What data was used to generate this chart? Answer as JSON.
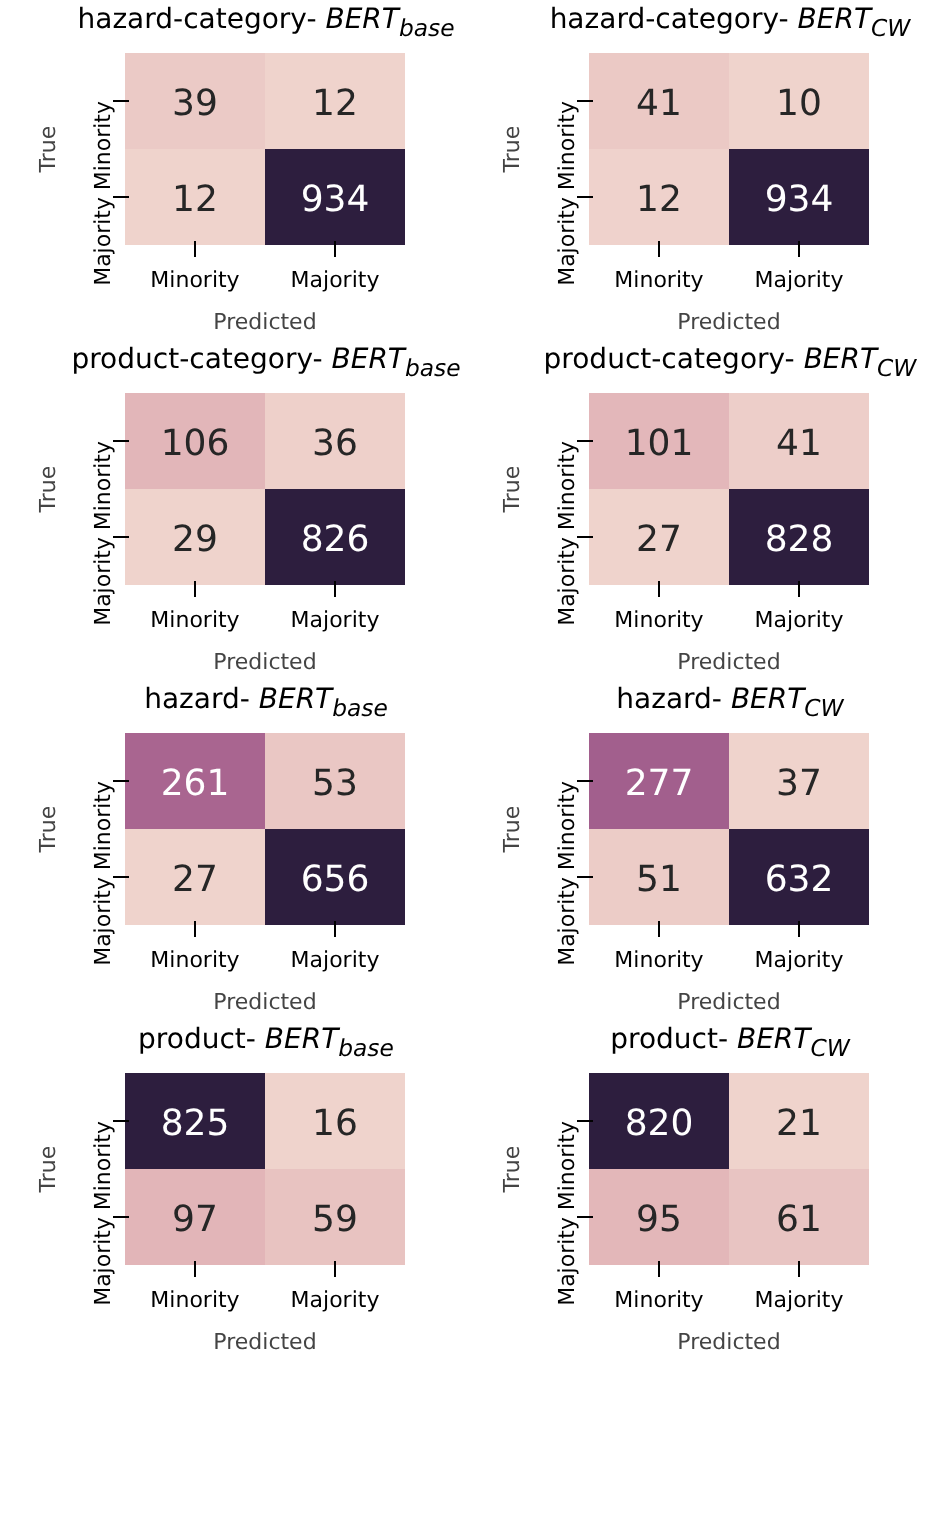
{
  "chart_data": [
    {
      "type": "heatmap",
      "title": "hazard-category- BERT$_{base}$",
      "xlabel": "Predicted",
      "ylabel": "True",
      "categories": [
        "Minority",
        "Majority"
      ],
      "y_categories": [
        "Minority",
        "Majority"
      ],
      "cells": [
        [
          39,
          12
        ],
        [
          12,
          934
        ]
      ],
      "data_labels": true
    },
    {
      "type": "heatmap",
      "title": "hazard-category- BERT$_{CW}$",
      "xlabel": "Predicted",
      "ylabel": "True",
      "categories": [
        "Minority",
        "Majority"
      ],
      "y_categories": [
        "Minority",
        "Majority"
      ],
      "cells": [
        [
          41,
          10
        ],
        [
          12,
          934
        ]
      ],
      "data_labels": true
    },
    {
      "type": "heatmap",
      "title": "product-category- BERT$_{base}$",
      "xlabel": "Predicted",
      "ylabel": "True",
      "categories": [
        "Minority",
        "Majority"
      ],
      "y_categories": [
        "Minority",
        "Majority"
      ],
      "cells": [
        [
          106,
          36
        ],
        [
          29,
          826
        ]
      ],
      "data_labels": true
    },
    {
      "type": "heatmap",
      "title": "product-category- BERT$_{CW}$",
      "xlabel": "Predicted",
      "ylabel": "True",
      "categories": [
        "Minority",
        "Majority"
      ],
      "y_categories": [
        "Minority",
        "Majority"
      ],
      "cells": [
        [
          101,
          41
        ],
        [
          27,
          828
        ]
      ],
      "data_labels": true
    },
    {
      "type": "heatmap",
      "title": "hazard- BERT$_{base}$",
      "xlabel": "Predicted",
      "ylabel": "True",
      "categories": [
        "Minority",
        "Majority"
      ],
      "y_categories": [
        "Minority",
        "Majority"
      ],
      "cells": [
        [
          261,
          53
        ],
        [
          27,
          656
        ]
      ],
      "data_labels": true
    },
    {
      "type": "heatmap",
      "title": "hazard- BERT$_{CW}$",
      "xlabel": "Predicted",
      "ylabel": "True",
      "categories": [
        "Minority",
        "Majority"
      ],
      "y_categories": [
        "Minority",
        "Majority"
      ],
      "cells": [
        [
          277,
          37
        ],
        [
          51,
          632
        ]
      ],
      "data_labels": true
    },
    {
      "type": "heatmap",
      "title": "product- BERT$_{base}$",
      "xlabel": "Predicted",
      "ylabel": "True",
      "categories": [
        "Minority",
        "Majority"
      ],
      "y_categories": [
        "Minority",
        "Majority"
      ],
      "cells": [
        [
          825,
          16
        ],
        [
          97,
          59
        ]
      ],
      "data_labels": true
    },
    {
      "type": "heatmap",
      "title": "product- BERT$_{CW}$",
      "xlabel": "Predicted",
      "ylabel": "True",
      "categories": [
        "Minority",
        "Majority"
      ],
      "y_categories": [
        "Minority",
        "Majority"
      ],
      "cells": [
        [
          820,
          21
        ],
        [
          95,
          61
        ]
      ],
      "data_labels": true
    }
  ]
}
